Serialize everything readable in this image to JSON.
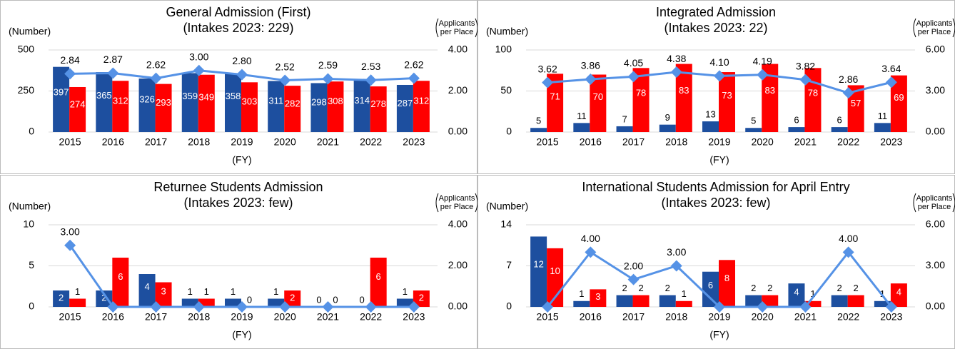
{
  "chart_data": [
    {
      "type": "bar_line",
      "title": "General Admission (First)",
      "subtitle": "(Intakes 2023: 229)",
      "y_label": "(Number)",
      "y2_label": [
        "Applicants",
        "per Place"
      ],
      "x_label": "(FY)",
      "categories": [
        "2015",
        "2016",
        "2017",
        "2018",
        "2019",
        "2020",
        "2021",
        "2022",
        "2023"
      ],
      "ylim": [
        0,
        500
      ],
      "yticks": [
        0,
        250,
        500
      ],
      "y2lim": [
        0,
        4
      ],
      "y2ticks": [
        {
          "value": 0,
          "label": "0.00"
        },
        {
          "value": 2,
          "label": "2.00"
        },
        {
          "value": 4,
          "label": "4.00"
        }
      ],
      "grid": true,
      "series": [
        {
          "type": "bar",
          "color": "#1d4f9f",
          "values": [
            397,
            365,
            326,
            359,
            358,
            311,
            298,
            314,
            287
          ]
        },
        {
          "type": "bar",
          "color": "#ff0000",
          "values": [
            274,
            312,
            293,
            349,
            303,
            282,
            308,
            278,
            312
          ]
        },
        {
          "type": "line",
          "axis": "y2",
          "color": "#5592e6",
          "values": [
            2.84,
            2.87,
            2.62,
            3.0,
            2.8,
            2.52,
            2.59,
            2.53,
            2.62
          ],
          "value_labels": [
            "2.84",
            "2.87",
            "2.62",
            "3.00",
            "2.80",
            "2.52",
            "2.59",
            "2.53",
            "2.62"
          ]
        }
      ]
    },
    {
      "type": "bar_line",
      "title": "Integrated Admission",
      "subtitle": "(Intakes 2023: 22)",
      "y_label": "(Number)",
      "y2_label": [
        "Applicants",
        "per Place"
      ],
      "x_label": "(FY)",
      "categories": [
        "2015",
        "2016",
        "2017",
        "2018",
        "2019",
        "2020",
        "2021",
        "2022",
        "2023"
      ],
      "ylim": [
        0,
        100
      ],
      "yticks": [
        0,
        50,
        100
      ],
      "y2lim": [
        0,
        6
      ],
      "y2ticks": [
        {
          "value": 0,
          "label": "0.00"
        },
        {
          "value": 3,
          "label": "3.00"
        },
        {
          "value": 6,
          "label": "6.00"
        }
      ],
      "grid": true,
      "series": [
        {
          "type": "bar",
          "color": "#1d4f9f",
          "values": [
            5,
            11,
            7,
            9,
            13,
            5,
            6,
            6,
            11
          ]
        },
        {
          "type": "bar",
          "color": "#ff0000",
          "values": [
            71,
            70,
            78,
            83,
            73,
            83,
            78,
            57,
            69
          ]
        },
        {
          "type": "line",
          "axis": "y2",
          "color": "#5592e6",
          "values": [
            3.62,
            3.86,
            4.05,
            4.38,
            4.1,
            4.19,
            3.82,
            2.86,
            3.64
          ],
          "value_labels": [
            "3.62",
            "3.86",
            "4.05",
            "4.38",
            "4.10",
            "4.19",
            "3.82",
            "2.86",
            "3.64"
          ]
        }
      ]
    },
    {
      "type": "bar_line",
      "title": "Returnee Students Admission",
      "subtitle": "(Intakes 2023: few)",
      "y_label": "(Number)",
      "y2_label": [
        "Applicants",
        "per Place"
      ],
      "x_label": "(FY)",
      "categories": [
        "2015",
        "2016",
        "2017",
        "2018",
        "2019",
        "2020",
        "2021",
        "2022",
        "2023"
      ],
      "ylim": [
        0,
        10
      ],
      "yticks": [
        0,
        5,
        10
      ],
      "y2lim": [
        0,
        4
      ],
      "y2ticks": [
        {
          "value": 0,
          "label": "0.00"
        },
        {
          "value": 2,
          "label": "2.00"
        },
        {
          "value": 4,
          "label": "4.00"
        }
      ],
      "grid": true,
      "series": [
        {
          "type": "bar",
          "color": "#1d4f9f",
          "values": [
            2,
            2,
            4,
            1,
            1,
            1,
            0,
            0,
            1
          ]
        },
        {
          "type": "bar",
          "color": "#ff0000",
          "values": [
            1,
            6,
            3,
            1,
            0,
            2,
            0,
            6,
            2
          ]
        },
        {
          "type": "line",
          "axis": "y2",
          "color": "#5592e6",
          "values": [
            3.0,
            0,
            0,
            0,
            0,
            0,
            0,
            0,
            0
          ],
          "value_labels": [
            "3.00",
            null,
            null,
            null,
            null,
            null,
            null,
            null,
            null
          ]
        }
      ]
    },
    {
      "type": "bar_line",
      "title": "International Students Admission for April Entry",
      "subtitle": "(Intakes 2023: few)",
      "y_label": "(Number)",
      "y2_label": [
        "Applicants",
        "per Place"
      ],
      "x_label": "(FY)",
      "categories": [
        "2015",
        "2016",
        "2017",
        "2018",
        "2019",
        "2020",
        "2021",
        "2022",
        "2023"
      ],
      "ylim": [
        0,
        14
      ],
      "yticks": [
        0,
        7,
        14
      ],
      "y2lim": [
        0,
        6
      ],
      "y2ticks": [
        {
          "value": 0,
          "label": "0.00"
        },
        {
          "value": 3,
          "label": "3.00"
        },
        {
          "value": 6,
          "label": "6.00"
        }
      ],
      "grid": true,
      "series": [
        {
          "type": "bar",
          "color": "#1d4f9f",
          "values": [
            12,
            1,
            2,
            2,
            6,
            2,
            4,
            2,
            1
          ]
        },
        {
          "type": "bar",
          "color": "#ff0000",
          "values": [
            10,
            3,
            2,
            1,
            8,
            2,
            1,
            2,
            4
          ]
        },
        {
          "type": "line",
          "axis": "y2",
          "color": "#5592e6",
          "values": [
            0,
            4.0,
            2.0,
            3.0,
            0,
            0,
            0,
            4.0,
            0
          ],
          "value_labels": [
            null,
            "4.00",
            "2.00",
            "3.00",
            null,
            null,
            null,
            "4.00",
            null
          ]
        }
      ]
    }
  ]
}
